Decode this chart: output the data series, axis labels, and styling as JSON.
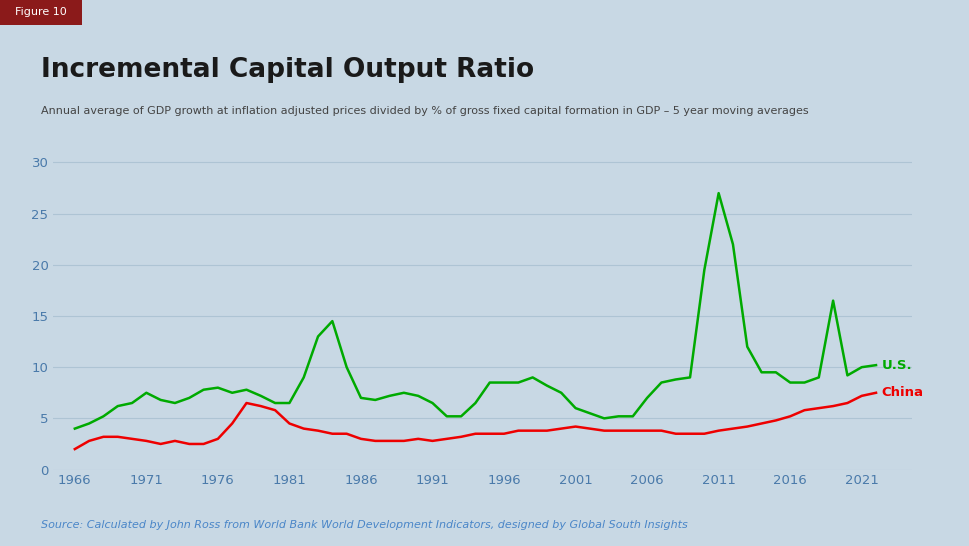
{
  "title": "Incremental Capital Output Ratio",
  "subtitle": "Annual average of GDP growth at inflation adjusted prices divided by % of gross fixed capital formation in GDP – 5 year moving averages",
  "source": "Source: Calculated by John Ross from World Bank World Development Indicators, designed by Global South Insights",
  "figure_label": "Figure 10",
  "background_color": "#c8d8e4",
  "plot_bg_color": "#c8d8e4",
  "title_color": "#1a1a1a",
  "subtitle_color": "#444444",
  "source_color": "#4a86c8",
  "figure_label_bg": "#8b1a1a",
  "figure_label_color": "#ffffff",
  "us_color": "#00aa00",
  "china_color": "#ee0000",
  "gridline_color": "#aec4d4",
  "axis_label_color": "#4a7aaa",
  "ylim": [
    0,
    32
  ],
  "yticks": [
    0,
    5,
    10,
    15,
    20,
    25,
    30
  ],
  "us_years": [
    1966,
    1967,
    1968,
    1969,
    1970,
    1971,
    1972,
    1973,
    1974,
    1975,
    1976,
    1977,
    1978,
    1979,
    1980,
    1981,
    1982,
    1983,
    1984,
    1985,
    1986,
    1987,
    1988,
    1989,
    1990,
    1991,
    1992,
    1993,
    1994,
    1995,
    1996,
    1997,
    1998,
    1999,
    2000,
    2001,
    2002,
    2003,
    2004,
    2005,
    2006,
    2007,
    2008,
    2009,
    2010,
    2011,
    2012,
    2013,
    2014,
    2015,
    2016,
    2017,
    2018,
    2019,
    2020,
    2021,
    2022
  ],
  "us_values": [
    4.0,
    4.5,
    5.2,
    6.2,
    6.5,
    7.5,
    6.8,
    6.5,
    7.0,
    7.8,
    8.0,
    7.5,
    7.8,
    7.2,
    6.5,
    6.5,
    9.0,
    13.0,
    14.5,
    10.0,
    7.0,
    6.8,
    7.2,
    7.5,
    7.2,
    6.5,
    5.2,
    5.2,
    6.5,
    8.5,
    8.5,
    8.5,
    9.0,
    8.2,
    7.5,
    6.0,
    5.5,
    5.0,
    5.2,
    5.2,
    7.0,
    8.5,
    8.8,
    9.0,
    19.5,
    27.0,
    22.0,
    12.0,
    9.5,
    9.5,
    8.5,
    8.5,
    9.0,
    16.5,
    9.2,
    10.0,
    10.2
  ],
  "china_years": [
    1966,
    1967,
    1968,
    1969,
    1970,
    1971,
    1972,
    1973,
    1974,
    1975,
    1976,
    1977,
    1978,
    1979,
    1980,
    1981,
    1982,
    1983,
    1984,
    1985,
    1986,
    1987,
    1988,
    1989,
    1990,
    1991,
    1992,
    1993,
    1994,
    1995,
    1996,
    1997,
    1998,
    1999,
    2000,
    2001,
    2002,
    2003,
    2004,
    2005,
    2006,
    2007,
    2008,
    2009,
    2010,
    2011,
    2012,
    2013,
    2014,
    2015,
    2016,
    2017,
    2018,
    2019,
    2020,
    2021,
    2022
  ],
  "china_values": [
    2.0,
    2.8,
    3.2,
    3.2,
    3.0,
    2.8,
    2.5,
    2.8,
    2.5,
    2.5,
    3.0,
    4.5,
    6.5,
    6.2,
    5.8,
    4.5,
    4.0,
    3.8,
    3.5,
    3.5,
    3.0,
    2.8,
    2.8,
    2.8,
    3.0,
    2.8,
    3.0,
    3.2,
    3.5,
    3.5,
    3.5,
    3.8,
    3.8,
    3.8,
    4.0,
    4.2,
    4.0,
    3.8,
    3.8,
    3.8,
    3.8,
    3.8,
    3.5,
    3.5,
    3.5,
    3.8,
    4.0,
    4.2,
    4.5,
    4.8,
    5.2,
    5.8,
    6.0,
    6.2,
    6.5,
    7.2,
    7.5
  ],
  "xtick_years": [
    1966,
    1971,
    1976,
    1981,
    1986,
    1991,
    1996,
    2001,
    2006,
    2011,
    2016,
    2021
  ]
}
